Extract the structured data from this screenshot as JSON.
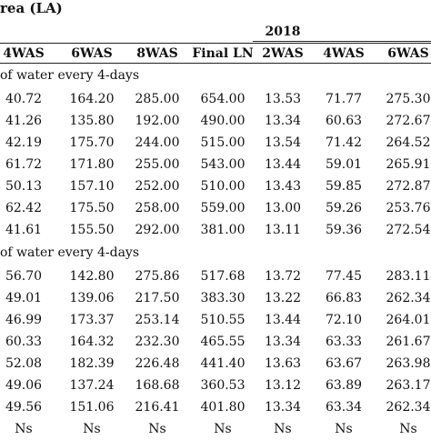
{
  "table": {
    "title": "rea (LA)",
    "year": "2018",
    "headers": [
      "4WAS",
      "6WAS",
      "8WAS",
      "Final LN",
      "2WAS",
      "4WAS",
      "6WAS"
    ],
    "sections": [
      {
        "label": "of water every 4-days",
        "rows": [
          [
            "40.72",
            "164.20",
            "285.00",
            "654.00",
            "13.53",
            "71.77",
            "275.30"
          ],
          [
            "41.26",
            "135.80",
            "192.00",
            "490.00",
            "13.34",
            "60.63",
            "272.67"
          ],
          [
            "42.19",
            "175.70",
            "244.00",
            "515.00",
            "13.54",
            "71.42",
            "264.52"
          ],
          [
            "61.72",
            "171.80",
            "255.00",
            "543.00",
            "13.44",
            "59.01",
            "265.91"
          ],
          [
            "50.13",
            "157.10",
            "252.00",
            "510.00",
            "13.43",
            "59.85",
            "272.87"
          ],
          [
            "62.42",
            "175.50",
            "258.00",
            "559.00",
            "13.00",
            "59.26",
            "253.76"
          ],
          [
            "41.61",
            "155.50",
            "292.00",
            "381.00",
            "13.11",
            "59.36",
            "272.54"
          ]
        ]
      },
      {
        "label": "of water every 4-days",
        "rows": [
          [
            "56.70",
            "142.80",
            "275.86",
            "517.68",
            "13.72",
            "77.45",
            "283.11"
          ],
          [
            "49.01",
            "139.06",
            "217.50",
            "383.30",
            "13.22",
            "66.83",
            "262.34"
          ],
          [
            "46.99",
            "173.37",
            "253.14",
            "510.55",
            "13.44",
            "72.10",
            "264.01"
          ],
          [
            "60.33",
            "164.32",
            "232.30",
            "465.55",
            "13.34",
            "63.33",
            "261.67"
          ],
          [
            "52.08",
            "182.39",
            "226.48",
            "441.40",
            "13.63",
            "63.67",
            "263.98"
          ],
          [
            "49.06",
            "137.24",
            "168.68",
            "360.53",
            "13.12",
            "63.89",
            "263.17"
          ],
          [
            "49.56",
            "151.06",
            "216.41",
            "401.80",
            "13.34",
            "63.34",
            "262.34"
          ]
        ]
      }
    ],
    "footer": [
      "Ns",
      "Ns",
      "Ns",
      "Ns",
      "Ns",
      "Ns",
      "Ns"
    ]
  }
}
